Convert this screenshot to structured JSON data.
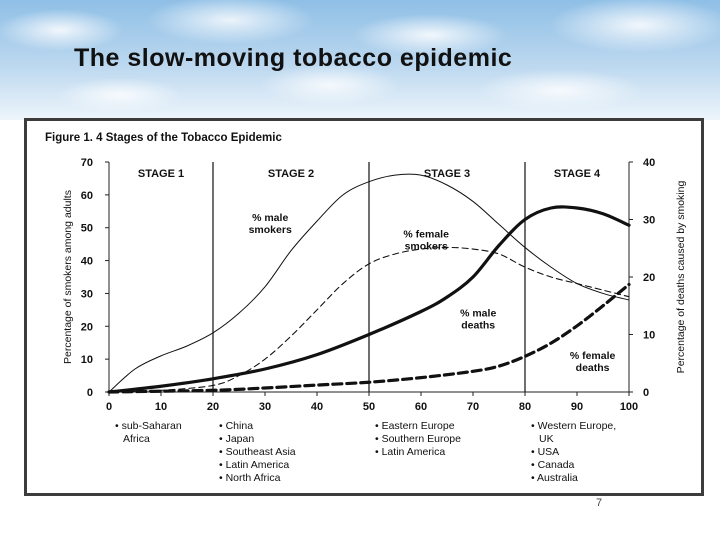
{
  "slide": {
    "title": "The slow-moving tobacco epidemic",
    "page_number": "7"
  },
  "chart_data": {
    "type": "line",
    "title": "Figure 1. 4 Stages of the Tobacco Epidemic",
    "xlabel": "",
    "ylabel": "Percentage of smokers among adults",
    "y2label": "Percentage of deaths caused by smoking",
    "xlim": [
      0,
      100
    ],
    "ylim": [
      0,
      70
    ],
    "y2lim": [
      0,
      40
    ],
    "x_ticks": [
      0,
      10,
      20,
      30,
      40,
      50,
      60,
      70,
      80,
      90,
      100
    ],
    "y_ticks": [
      0,
      10,
      20,
      30,
      40,
      50,
      60,
      70
    ],
    "y2_ticks": [
      0,
      10,
      20,
      30,
      40
    ],
    "stage_boundaries": [
      20,
      50,
      80
    ],
    "stages": [
      {
        "label": "STAGE 1",
        "x_center": 10,
        "countries": [
          "• sub-Saharan",
          "Africa"
        ]
      },
      {
        "label": "STAGE 2",
        "x_center": 35,
        "countries": [
          "• China",
          "• Japan",
          "• Southeast Asia",
          "• Latin America",
          "• North Africa"
        ]
      },
      {
        "label": "STAGE 3",
        "x_center": 65,
        "countries": [
          "• Eastern Europe",
          "• Southern Europe",
          "• Latin America"
        ]
      },
      {
        "label": "STAGE 4",
        "x_center": 90,
        "countries": [
          "• Western Europe,",
          "UK",
          "• USA",
          "• Canada",
          "• Australia"
        ]
      }
    ],
    "series": [
      {
        "name": "% male smokers",
        "axis": "left",
        "style": "thin-solid",
        "x": [
          0,
          5,
          10,
          15,
          20,
          25,
          30,
          35,
          40,
          45,
          50,
          55,
          60,
          65,
          70,
          75,
          80,
          85,
          90,
          95,
          100
        ],
        "y": [
          0,
          7,
          11,
          14,
          18,
          24,
          32,
          43,
          52,
          60,
          64,
          66,
          66,
          63,
          58,
          51,
          44,
          38,
          33,
          30,
          28
        ]
      },
      {
        "name": "% female smokers",
        "axis": "left",
        "style": "thin-dashed",
        "x": [
          0,
          10,
          20,
          25,
          30,
          35,
          40,
          45,
          50,
          55,
          60,
          65,
          70,
          75,
          80,
          85,
          90,
          95,
          100
        ],
        "y": [
          0,
          0.5,
          2,
          5,
          10,
          17,
          25,
          33,
          39,
          42,
          43.5,
          44,
          43.5,
          42,
          38,
          35,
          33,
          31,
          29
        ]
      },
      {
        "name": "% male deaths",
        "axis": "right",
        "style": "thick-solid",
        "x": [
          0,
          10,
          20,
          30,
          40,
          50,
          60,
          65,
          70,
          75,
          80,
          85,
          90,
          95,
          100
        ],
        "y": [
          0,
          1,
          2.3,
          4,
          6.5,
          10,
          14,
          16.5,
          20,
          25.5,
          30,
          32,
          32,
          31,
          29
        ]
      },
      {
        "name": "% female deaths",
        "axis": "right",
        "style": "thick-dashed",
        "x": [
          0,
          20,
          30,
          40,
          50,
          60,
          70,
          75,
          80,
          85,
          90,
          95,
          100
        ],
        "y": [
          0,
          0.3,
          0.7,
          1.2,
          1.7,
          2.5,
          3.6,
          4.5,
          6.2,
          8.5,
          11.5,
          15,
          18.7
        ]
      }
    ],
    "annotations": [
      {
        "lines": [
          "% male",
          "smokers"
        ],
        "x": 31,
        "y": 52
      },
      {
        "lines": [
          "% female",
          "smokers"
        ],
        "x": 61,
        "y": 47
      },
      {
        "lines": [
          "% male",
          "deaths"
        ],
        "x": 71,
        "y": 23
      },
      {
        "lines": [
          "% female",
          "deaths"
        ],
        "x": 93,
        "y": 10
      }
    ],
    "grid": false,
    "legend": "inline-annotations"
  }
}
